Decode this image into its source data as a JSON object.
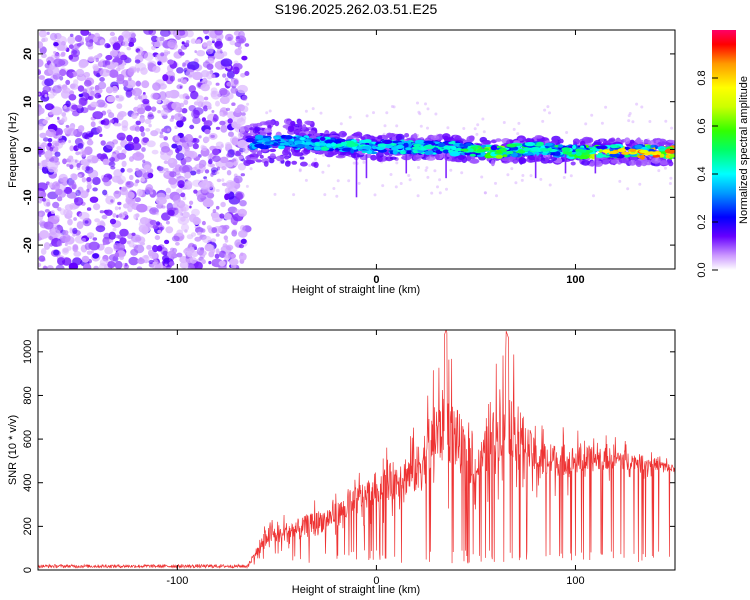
{
  "title": "S196.2025.262.03.51.E25",
  "chart_data": [
    {
      "type": "heatmap",
      "name": "spectrogram",
      "xlabel": "Height of straight line (km)",
      "ylabel": "Frequency (Hz)",
      "xlim": [
        -170,
        150
      ],
      "ylim": [
        -25,
        25
      ],
      "xticks": [
        -100,
        0,
        100
      ],
      "yticks": [
        -20,
        -10,
        0,
        10,
        20
      ],
      "colorbar": {
        "label": "Normalized spectral amplitude",
        "range": [
          0.0,
          1.0
        ],
        "ticks": [
          0.0,
          0.2,
          0.4,
          0.6,
          0.8
        ],
        "tick_labels": [
          "0.0",
          "0.2",
          "0.4",
          "0.6",
          "0.8"
        ]
      },
      "noise_region_x": [
        -170,
        -65
      ],
      "signal_track": {
        "x": [
          -65,
          -40,
          -20,
          0,
          20,
          40,
          60,
          80,
          100,
          120,
          150
        ],
        "frequency": [
          1.5,
          1.5,
          1.0,
          0.5,
          0.5,
          0.2,
          -0.5,
          0.2,
          -0.5,
          -0.5,
          -0.5
        ],
        "peak_amplitude": [
          0.35,
          0.4,
          0.5,
          0.45,
          0.45,
          0.5,
          0.7,
          0.5,
          0.55,
          0.85,
          0.95
        ]
      }
    },
    {
      "type": "line",
      "name": "snr",
      "xlabel": "Height of straight line (km)",
      "ylabel": "SNR (10 * v/v)",
      "xlim": [
        -170,
        150
      ],
      "ylim": [
        0,
        1100
      ],
      "xticks": [
        -100,
        0,
        100
      ],
      "yticks": [
        0,
        200,
        400,
        600,
        800,
        1000
      ],
      "color": "#ee3333",
      "envelope": {
        "x": [
          -170,
          -65,
          -55,
          -40,
          -20,
          0,
          20,
          35,
          50,
          65,
          80,
          100,
          120,
          140,
          150
        ],
        "upper": [
          25,
          25,
          250,
          300,
          380,
          550,
          700,
          1100,
          650,
          1100,
          700,
          650,
          620,
          550,
          500
        ],
        "lower": [
          5,
          5,
          60,
          60,
          120,
          200,
          200,
          250,
          250,
          300,
          300,
          350,
          400,
          420,
          420
        ]
      }
    }
  ]
}
